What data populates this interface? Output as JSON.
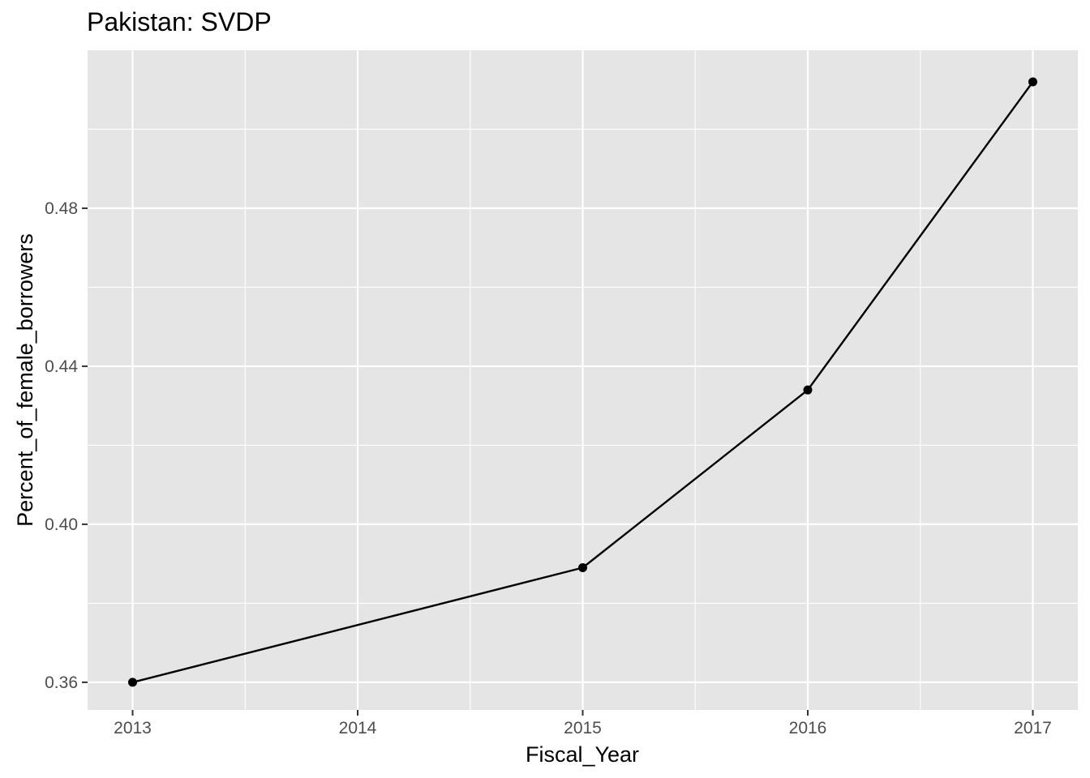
{
  "chart_data": {
    "type": "line",
    "title": "Pakistan:  SVDP",
    "xlabel": "Fiscal_Year",
    "ylabel": "Percent_of_female_borrowers",
    "x": [
      2013,
      2015,
      2016,
      2017
    ],
    "y": [
      0.36,
      0.389,
      0.434,
      0.512
    ],
    "xlim": [
      2012.8,
      2017.2
    ],
    "ylim": [
      0.353,
      0.52
    ],
    "x_ticks": [
      2013,
      2014,
      2015,
      2016,
      2017
    ],
    "x_tick_labels": [
      "2013",
      "2014",
      "2015",
      "2016",
      "2017"
    ],
    "y_ticks": [
      0.36,
      0.4,
      0.44,
      0.48
    ],
    "y_tick_labels": [
      "0.36",
      "0.40",
      "0.44",
      "0.48"
    ],
    "grid": true,
    "legend": "none",
    "colors": {
      "panel": "#e5e5e5",
      "grid": "#ffffff",
      "line": "#000000",
      "tick_text": "#4d4d4d"
    }
  }
}
